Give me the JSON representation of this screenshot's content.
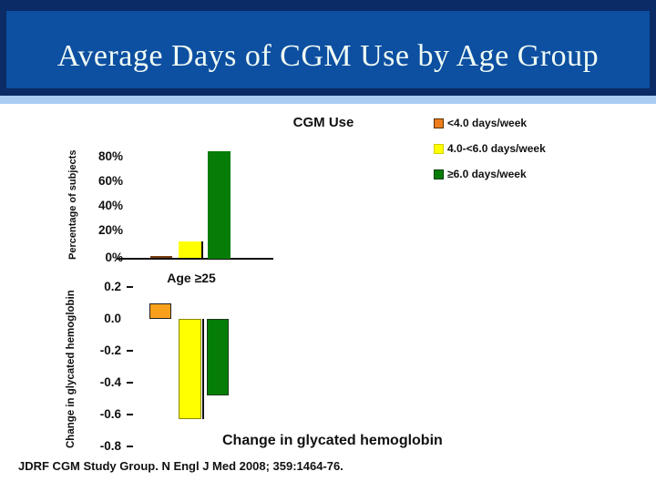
{
  "header": {
    "title": "Average Days of CGM Use by Age Group"
  },
  "colors": {
    "header_blue": "#0D4FA1",
    "header_edge": "#0A2B66",
    "accent_strip": "#A9CCF2",
    "title_text": "#EFFBF4"
  },
  "legend": {
    "position": "top-right",
    "items": [
      {
        "label": "<4.0 days/week",
        "color": "#ED7D1D",
        "border": "#5A3200"
      },
      {
        "label": "4.0-<6.0 days/week",
        "color": "#FFFF00",
        "border": "#CFCF00"
      },
      {
        "label": "≥6.0 days/week",
        "color": "#077D07",
        "border": "#043D04"
      }
    ]
  },
  "chart_data": [
    {
      "type": "bar",
      "title": "CGM Use",
      "ylabel": "Percentage of subjects",
      "xlabel": "",
      "categories": [
        "Age ≥25"
      ],
      "yticks": [
        "80%",
        "60%",
        "40%",
        "20%",
        "0%"
      ],
      "ylim": [
        0,
        88
      ],
      "grid": false,
      "legend_position": "right",
      "series": [
        {
          "name": "<4.0 days/week",
          "color": "#DD7A1E",
          "values": [
            2
          ]
        },
        {
          "name": "4.0-<6.0 days/week",
          "color": "#FFFF00",
          "values": [
            13
          ]
        },
        {
          "name": "≥6.0 days/week",
          "color": "#067D06",
          "values": [
            85
          ]
        }
      ]
    },
    {
      "type": "bar",
      "title": "Change in glycated hemoglobin",
      "ylabel": "Change in glycated hemoglobin",
      "xlabel": "",
      "categories": [
        "Age ≥25"
      ],
      "yticks": [
        "0.2",
        "0.0",
        "-0.2",
        "-0.4",
        "-0.6",
        "-0.8"
      ],
      "ylim": [
        -0.8,
        0.2
      ],
      "grid": false,
      "series": [
        {
          "name": "<4.0 days/week",
          "color": "#F9A01B",
          "values": [
            0.1
          ]
        },
        {
          "name": "4.0-<6.0 days/week",
          "color": "#FFFF00",
          "values": [
            -0.63
          ]
        },
        {
          "name": "≥6.0 days/week",
          "color": "#067D06",
          "values": [
            -0.48
          ]
        }
      ]
    }
  ],
  "citation": "JDRF CGM Study Group. N Engl J Med 2008; 359:1464-76."
}
